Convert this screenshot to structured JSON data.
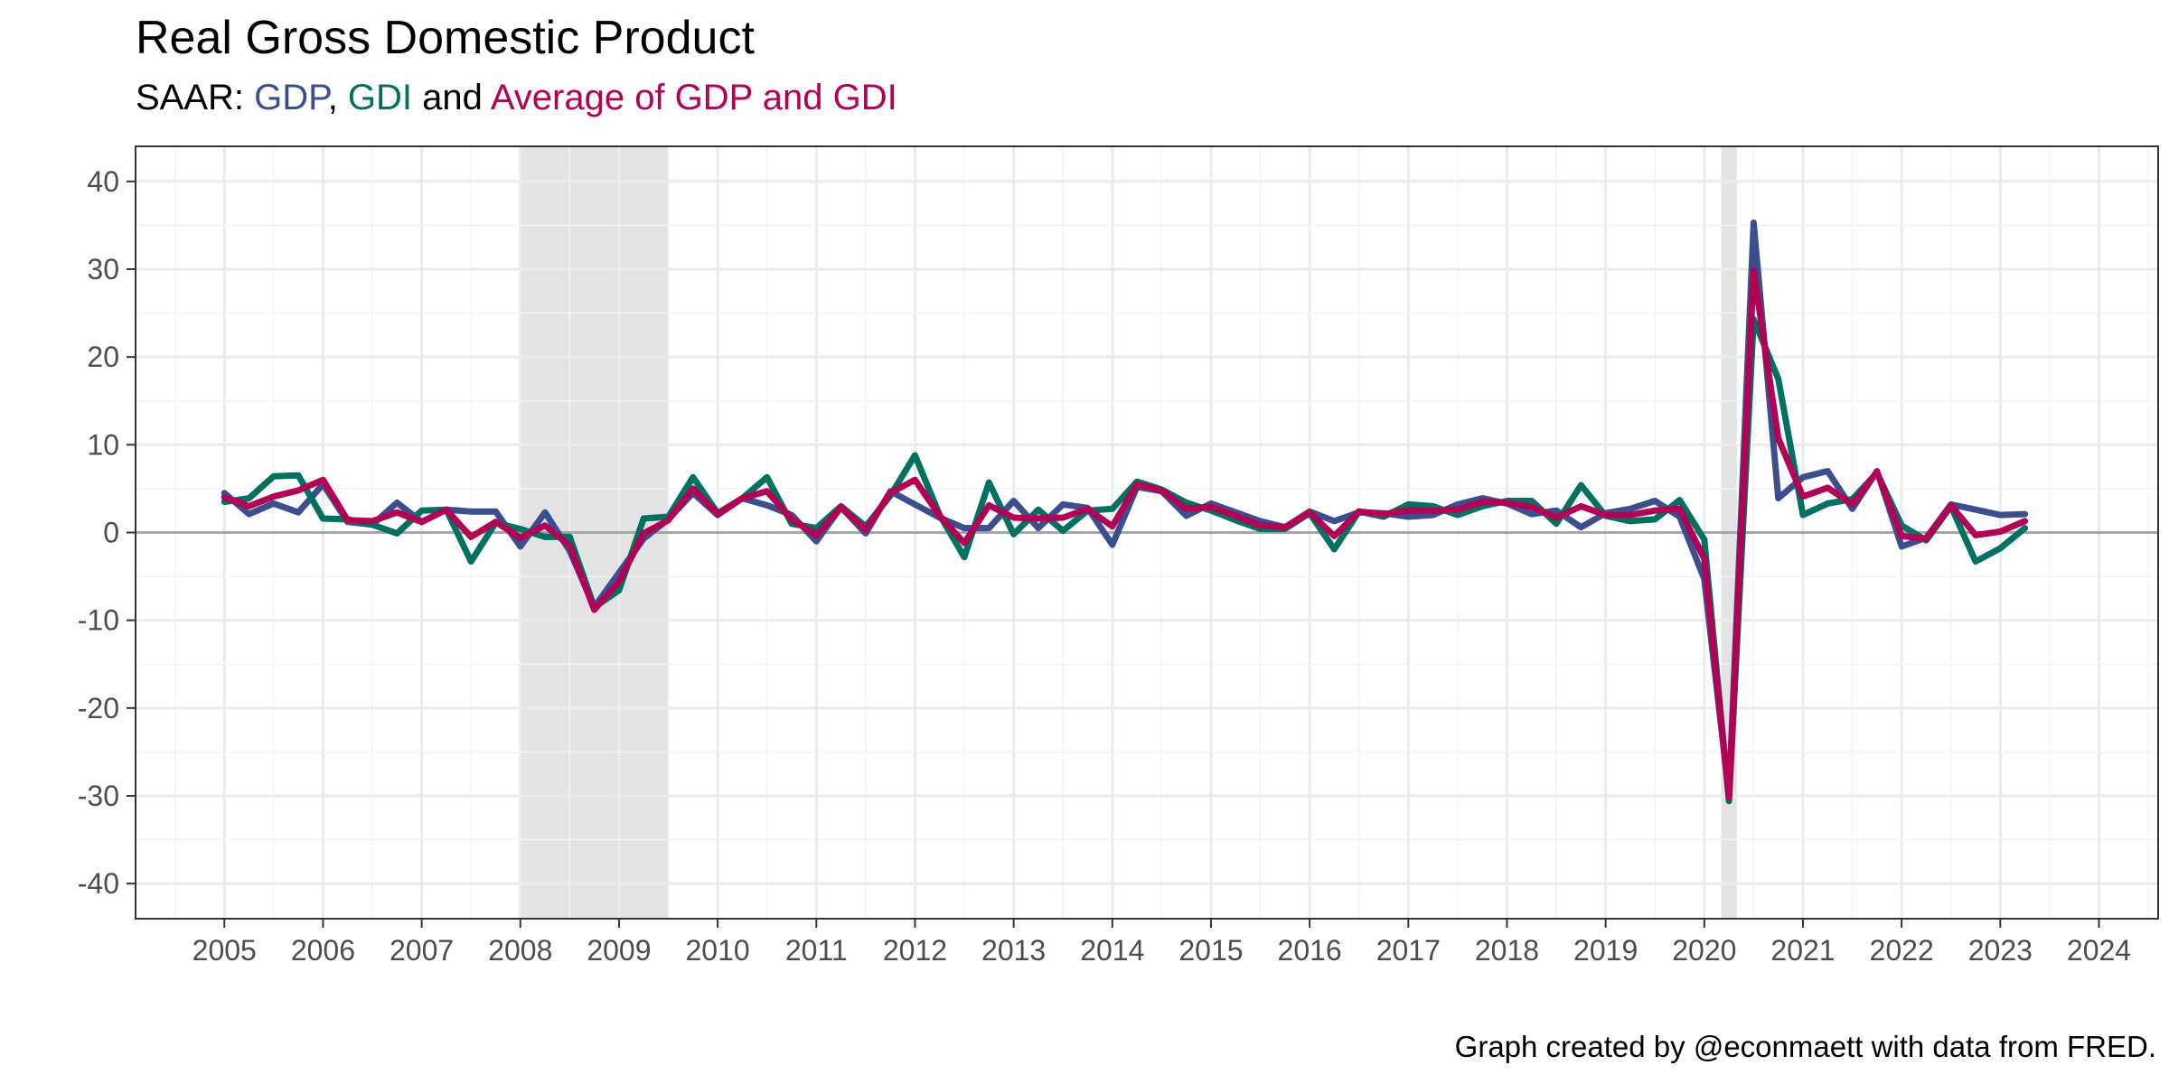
{
  "title": "Real Gross Domestic Product",
  "subtitle": {
    "prefix": "SAAR: ",
    "gdp": "GDP",
    "sep": ", ",
    "gdi": "GDI",
    "and": " and ",
    "avg": "Average of GDP and GDI"
  },
  "caption": "Graph created by @econmaett with data from FRED.",
  "colors": {
    "gdp": "#3b4f8f",
    "gdi": "#007060",
    "avg": "#b30055",
    "recession": "#e3e3e3",
    "zero_line": "#a6a6a6"
  },
  "chart_data": {
    "type": "line",
    "title": "Real Gross Domestic Product",
    "subtitle": "SAAR: GDP, GDI and Average of GDP and GDI",
    "xlabel": "",
    "ylabel": "",
    "xlim": [
      2004.1,
      2024.6
    ],
    "ylim": [
      -44,
      44
    ],
    "x_ticks": [
      "2005",
      "2006",
      "2007",
      "2008",
      "2009",
      "2010",
      "2011",
      "2012",
      "2013",
      "2014",
      "2015",
      "2016",
      "2017",
      "2018",
      "2019",
      "2020",
      "2021",
      "2022",
      "2023",
      "2024"
    ],
    "y_ticks": [
      "40",
      "30",
      "20",
      "10",
      "0",
      "-10",
      "-20",
      "-30",
      "-40"
    ],
    "grid": true,
    "legend": "in subtitle",
    "recessions": [
      {
        "start": 2008.0,
        "end": 2009.5
      },
      {
        "start": 2020.17,
        "end": 2020.33
      }
    ],
    "x": [
      2005.0,
      2005.25,
      2005.5,
      2005.75,
      2006.0,
      2006.25,
      2006.5,
      2006.75,
      2007.0,
      2007.25,
      2007.5,
      2007.75,
      2008.0,
      2008.25,
      2008.5,
      2008.75,
      2009.0,
      2009.25,
      2009.5,
      2009.75,
      2010.0,
      2010.25,
      2010.5,
      2010.75,
      2011.0,
      2011.25,
      2011.5,
      2011.75,
      2012.0,
      2012.25,
      2012.5,
      2012.75,
      2013.0,
      2013.25,
      2013.5,
      2013.75,
      2014.0,
      2014.25,
      2014.5,
      2014.75,
      2015.0,
      2015.25,
      2015.5,
      2015.75,
      2016.0,
      2016.25,
      2016.5,
      2016.75,
      2017.0,
      2017.25,
      2017.5,
      2017.75,
      2018.0,
      2018.25,
      2018.5,
      2018.75,
      2019.0,
      2019.25,
      2019.5,
      2019.75,
      2020.0,
      2020.25,
      2020.5,
      2020.75,
      2021.0,
      2021.25,
      2021.5,
      2021.75,
      2022.0,
      2022.25,
      2022.5,
      2022.75,
      2023.0,
      2023.25
    ],
    "series": [
      {
        "name": "GDP",
        "values": [
          4.5,
          2.1,
          3.3,
          2.3,
          5.5,
          1.2,
          0.9,
          3.4,
          1.2,
          2.6,
          2.4,
          2.4,
          -1.6,
          2.3,
          -2.1,
          -8.5,
          -4.6,
          -0.7,
          1.5,
          4.5,
          2.0,
          3.9,
          3.1,
          2.0,
          -1.0,
          2.9,
          -0.1,
          4.7,
          3.2,
          1.7,
          0.5,
          0.5,
          3.6,
          0.5,
          3.2,
          2.8,
          -1.4,
          5.2,
          4.7,
          1.9,
          3.3,
          2.3,
          1.3,
          0.6,
          2.4,
          1.3,
          2.3,
          2.2,
          1.8,
          2.0,
          3.2,
          3.9,
          3.3,
          2.1,
          2.5,
          0.6,
          2.2,
          2.7,
          3.6,
          1.8,
          -5.3,
          -29.9,
          35.3,
          3.9,
          6.3,
          7.0,
          2.7,
          7.0,
          -1.6,
          -0.6,
          3.2,
          2.6,
          2.0,
          2.1
        ]
      },
      {
        "name": "GDI",
        "values": [
          3.5,
          3.9,
          6.4,
          6.5,
          1.6,
          1.5,
          0.9,
          -0.1,
          2.5,
          2.6,
          -3.3,
          1.1,
          0.4,
          -0.5,
          -0.5,
          -8.5,
          -6.6,
          1.6,
          1.8,
          6.3,
          2.2,
          3.9,
          6.3,
          1.0,
          0.5,
          3.0,
          0.7,
          4.2,
          8.8,
          2.0,
          -2.8,
          5.7,
          -0.2,
          2.6,
          0.2,
          2.5,
          2.7,
          5.8,
          4.9,
          3.4,
          2.5,
          1.4,
          0.4,
          0.4,
          2.2,
          -1.9,
          2.4,
          1.8,
          3.2,
          3.0,
          2.0,
          3.0,
          3.6,
          3.6,
          1.0,
          5.4,
          1.9,
          1.3,
          1.5,
          3.7,
          -0.8,
          -30.6,
          24.3,
          17.5,
          2.0,
          3.3,
          3.8,
          6.8,
          0.8,
          -0.9,
          3.0,
          -3.3,
          -1.8,
          0.5
        ]
      },
      {
        "name": "Average of GDP and GDI",
        "values": [
          4.0,
          3.0,
          4.1,
          4.8,
          6.0,
          1.4,
          1.3,
          2.3,
          1.2,
          2.6,
          -0.5,
          1.2,
          -0.6,
          0.8,
          -1.5,
          -8.8,
          -5.6,
          -0.1,
          1.4,
          5.0,
          2.1,
          3.9,
          4.7,
          1.5,
          -0.3,
          2.9,
          0.3,
          4.5,
          6.0,
          1.9,
          -1.2,
          3.1,
          1.7,
          1.6,
          1.7,
          2.7,
          0.7,
          5.5,
          4.8,
          2.7,
          2.9,
          1.9,
          0.8,
          0.6,
          2.3,
          -0.4,
          2.4,
          2.1,
          2.5,
          2.5,
          2.6,
          3.5,
          3.4,
          2.9,
          1.7,
          3.0,
          2.0,
          2.0,
          2.5,
          2.7,
          -3.0,
          -30.2,
          29.8,
          10.7,
          4.1,
          5.1,
          3.2,
          6.9,
          -0.4,
          -0.7,
          3.1,
          -0.3,
          0.1,
          1.3
        ]
      }
    ]
  }
}
